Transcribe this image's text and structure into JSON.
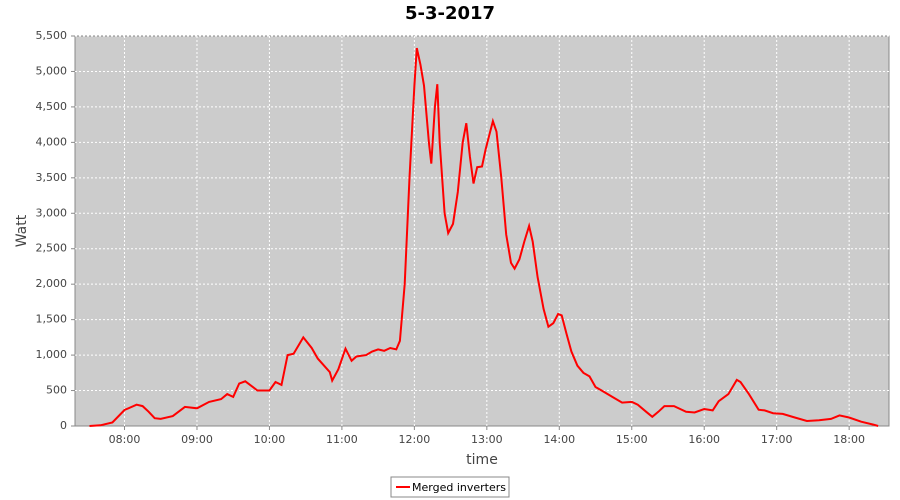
{
  "chart_data": {
    "type": "line",
    "title": "5-3-2017",
    "x_label": "time",
    "y_label": "Watt",
    "x": [
      "07:31",
      "07:40",
      "07:50",
      "08:00",
      "08:10",
      "08:15",
      "08:20",
      "08:25",
      "08:30",
      "08:40",
      "08:50",
      "09:00",
      "09:10",
      "09:20",
      "09:25",
      "09:30",
      "09:35",
      "09:40",
      "09:50",
      "10:00",
      "10:05",
      "10:10",
      "10:15",
      "10:20",
      "10:28",
      "10:35",
      "10:40",
      "10:50",
      "10:52",
      "10:57",
      "11:03",
      "11:08",
      "11:12",
      "11:20",
      "11:25",
      "11:30",
      "11:35",
      "11:40",
      "11:45",
      "11:48",
      "11:52",
      "11:56",
      "12:00",
      "12:02",
      "12:05",
      "12:08",
      "12:12",
      "12:14",
      "12:17",
      "12:19",
      "12:21",
      "12:25",
      "12:28",
      "12:32",
      "12:36",
      "12:40",
      "12:43",
      "12:46",
      "12:49",
      "12:52",
      "12:56",
      "12:59",
      "13:05",
      "13:08",
      "13:12",
      "13:16",
      "13:20",
      "13:23",
      "13:27",
      "13:31",
      "13:35",
      "13:38",
      "13:42",
      "13:47",
      "13:51",
      "13:55",
      "13:59",
      "14:02",
      "14:06",
      "14:10",
      "14:15",
      "14:20",
      "14:25",
      "14:30",
      "14:35",
      "14:45",
      "14:52",
      "15:00",
      "15:05",
      "15:12",
      "15:17",
      "15:22",
      "15:27",
      "15:35",
      "15:45",
      "15:52",
      "16:00",
      "16:07",
      "16:12",
      "16:20",
      "16:27",
      "16:30",
      "16:37",
      "16:45",
      "16:50",
      "16:57",
      "17:05",
      "17:15",
      "17:25",
      "17:35",
      "17:45",
      "17:52",
      "18:00",
      "18:10",
      "18:20",
      "18:24"
    ],
    "series": [
      {
        "name": "Merged inverters",
        "color": "#ff0000",
        "values": [
          0,
          10,
          50,
          225,
          300,
          280,
          200,
          110,
          100,
          140,
          270,
          250,
          340,
          380,
          450,
          410,
          600,
          630,
          500,
          500,
          620,
          580,
          1000,
          1020,
          1250,
          1100,
          950,
          760,
          640,
          800,
          1090,
          920,
          980,
          1000,
          1050,
          1080,
          1060,
          1100,
          1080,
          1200,
          2000,
          3500,
          4800,
          5330,
          5100,
          4800,
          4000,
          3700,
          4500,
          4820,
          4000,
          3000,
          2720,
          2850,
          3300,
          4000,
          4270,
          3800,
          3420,
          3650,
          3660,
          3900,
          4300,
          4150,
          3500,
          2700,
          2300,
          2220,
          2350,
          2600,
          2820,
          2600,
          2100,
          1650,
          1400,
          1450,
          1580,
          1560,
          1300,
          1050,
          850,
          750,
          700,
          550,
          500,
          400,
          330,
          340,
          300,
          200,
          130,
          200,
          280,
          280,
          200,
          190,
          240,
          220,
          350,
          450,
          650,
          620,
          450,
          230,
          220,
          180,
          170,
          120,
          70,
          80,
          100,
          150,
          120,
          60,
          20,
          0
        ]
      }
    ],
    "xlim": [
      "07:19",
      "18:33"
    ],
    "xticks": [
      "08:00",
      "09:00",
      "10:00",
      "11:00",
      "12:00",
      "13:00",
      "14:00",
      "15:00",
      "16:00",
      "17:00",
      "18:00"
    ],
    "ylim": [
      0,
      5500
    ],
    "yticks": [
      0,
      500,
      {
        "value": 1000,
        "label": "1,000"
      },
      {
        "value": 1500,
        "label": "1,500"
      },
      {
        "value": 2000,
        "label": "2,000"
      },
      {
        "value": 2500,
        "label": "2,500"
      },
      {
        "value": 3000,
        "label": "3,000"
      },
      {
        "value": 3500,
        "label": "3,500"
      },
      {
        "value": 4000,
        "label": "4,000"
      },
      {
        "value": 4500,
        "label": "4,500"
      },
      {
        "value": 5000,
        "label": "5,000"
      },
      {
        "value": 5500,
        "label": "5,500"
      }
    ],
    "grid": true,
    "legend": "bottom"
  }
}
